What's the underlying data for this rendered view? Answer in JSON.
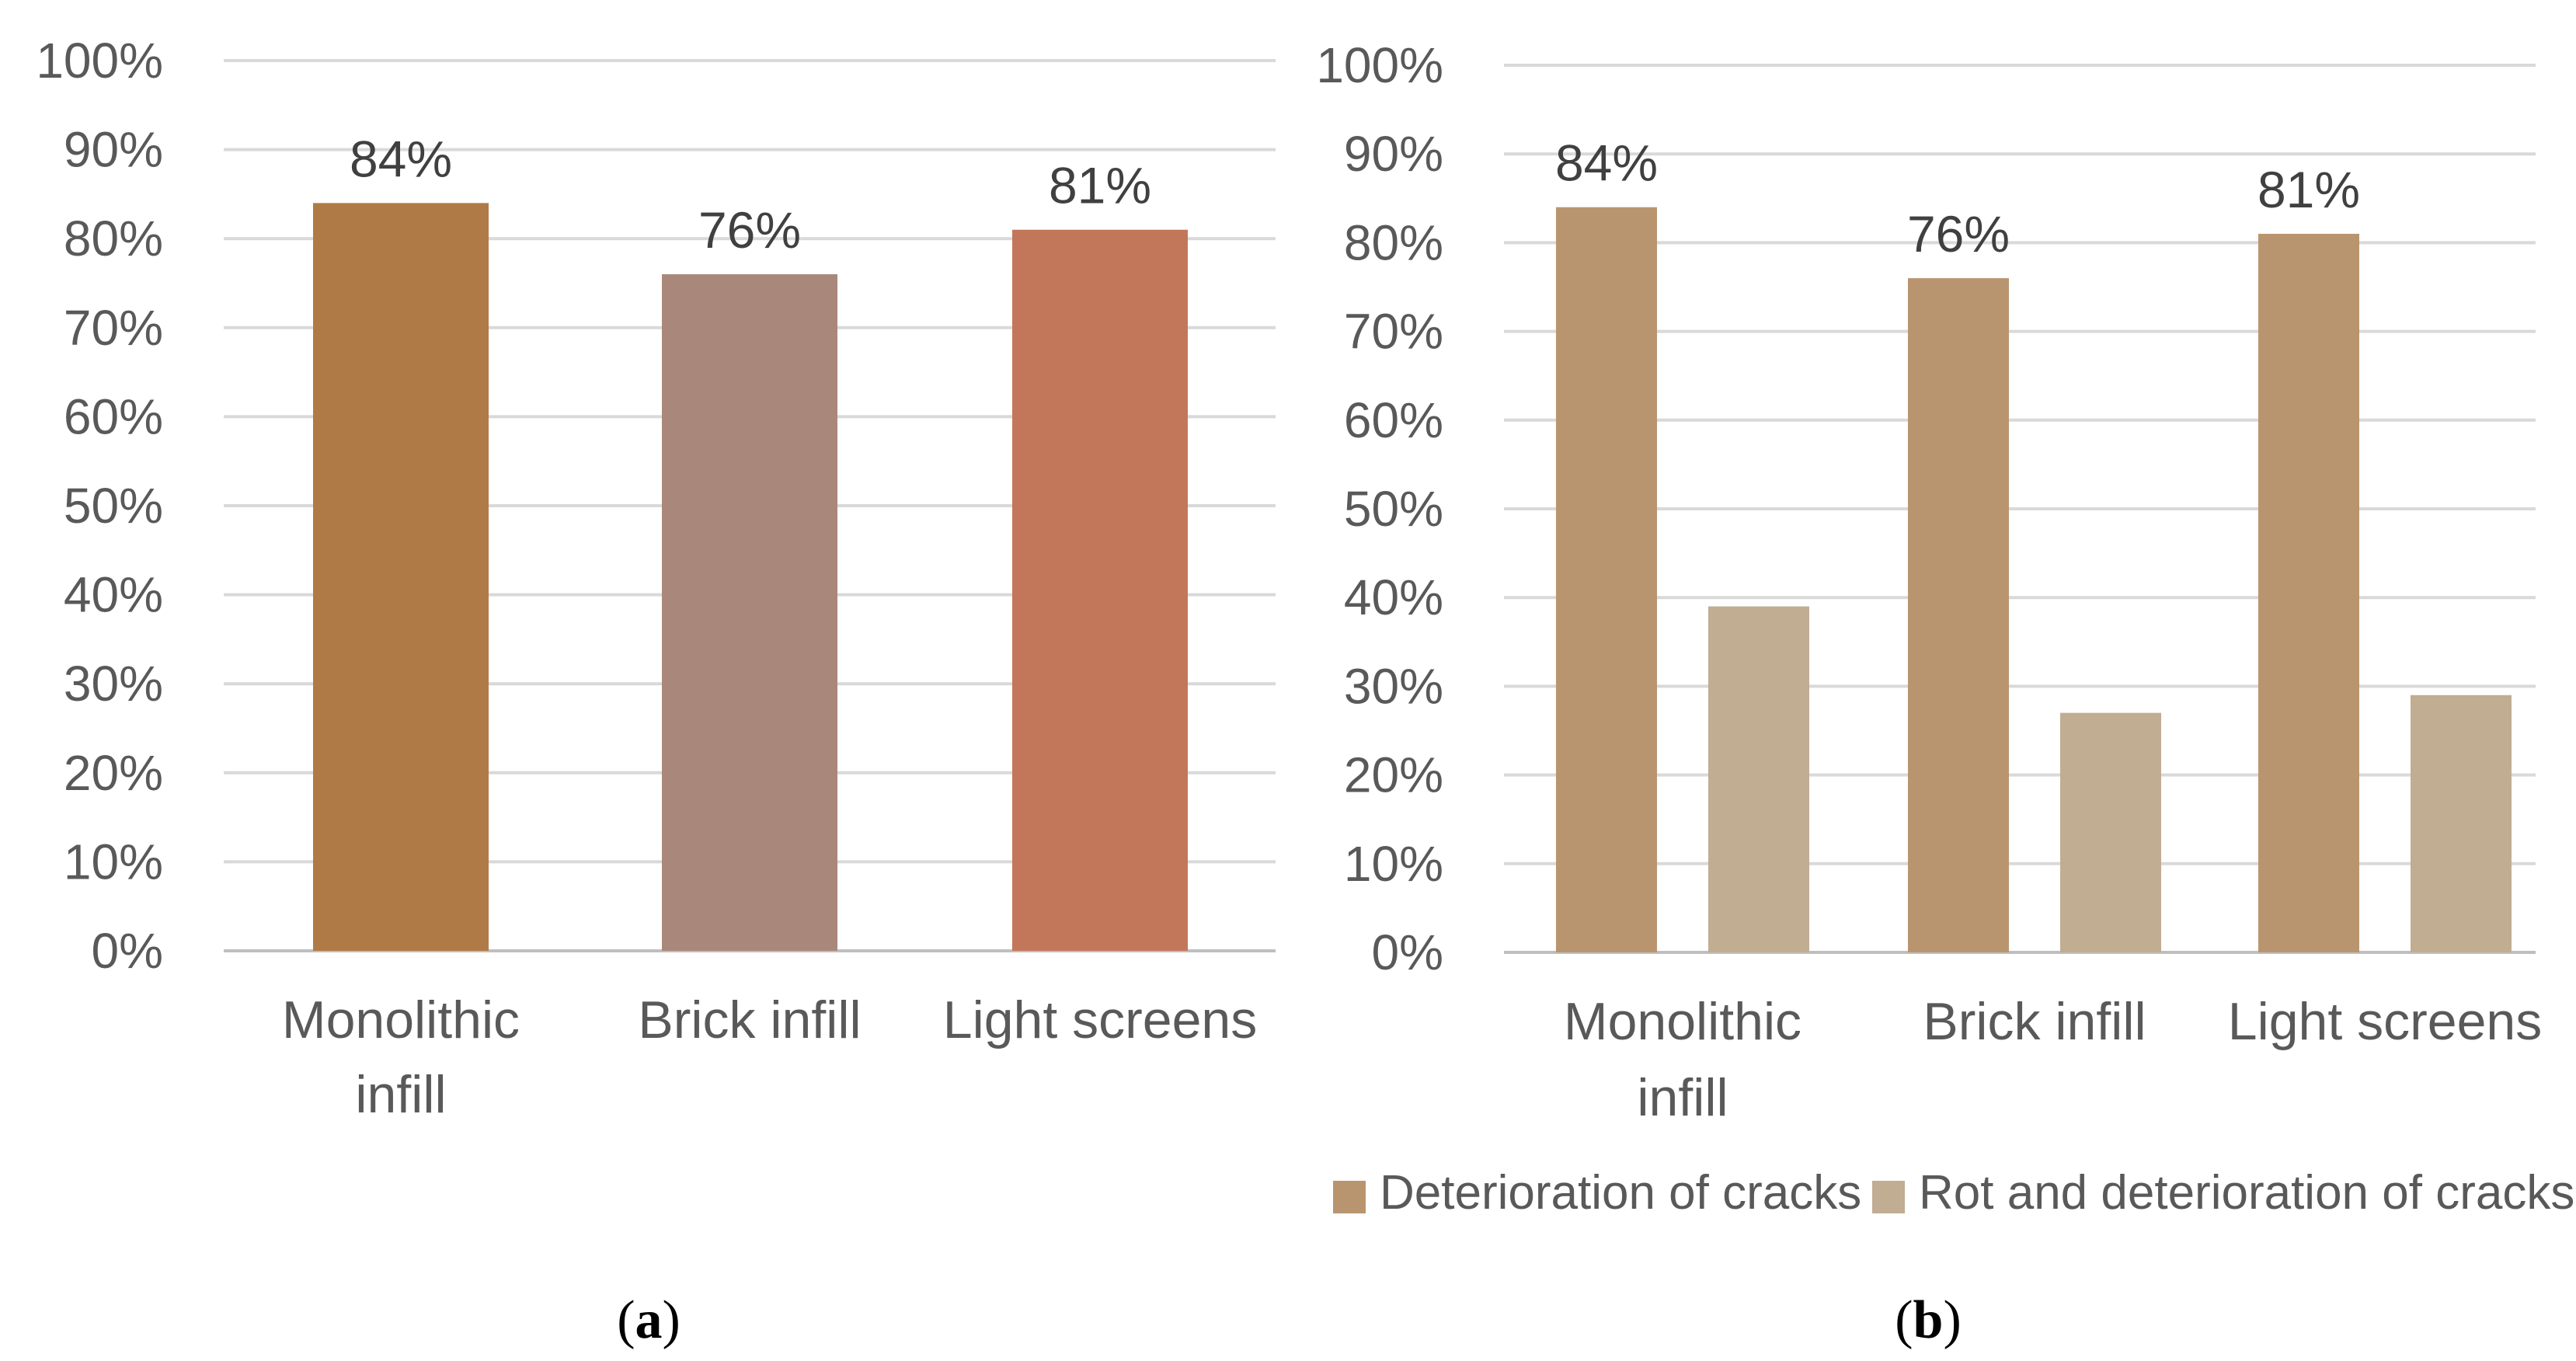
{
  "chart_data": [
    {
      "id": "a",
      "type": "bar",
      "panel_label": {
        "open": "(",
        "letter": "a",
        "close": ")"
      },
      "categories": [
        "Monolithic infill",
        "Brick infill",
        "Light screens"
      ],
      "category_lines": [
        [
          "Monolithic",
          "infill"
        ],
        [
          "Brick infill"
        ],
        [
          "Light screens"
        ]
      ],
      "series": [
        {
          "name": "",
          "values": [
            84,
            76,
            81
          ],
          "colors": [
            "#b07a47",
            "#a9887b",
            "#c3775a"
          ],
          "labels": [
            "84%",
            "76%",
            "81%"
          ]
        }
      ],
      "yticks": [
        "0%",
        "10%",
        "20%",
        "30%",
        "40%",
        "50%",
        "60%",
        "70%",
        "80%",
        "90%",
        "100%"
      ],
      "ylim": [
        0,
        100
      ],
      "grid": true,
      "legend": null
    },
    {
      "id": "b",
      "type": "bar",
      "panel_label": {
        "open": "(",
        "letter": "b",
        "close": ")"
      },
      "categories": [
        "Monolithic infill",
        "Brick infill",
        "Light screens"
      ],
      "category_lines": [
        [
          "Monolithic",
          "infill"
        ],
        [
          "Brick infill"
        ],
        [
          "Light screens"
        ]
      ],
      "series": [
        {
          "name": "Deterioration of cracks",
          "values": [
            84,
            76,
            81
          ],
          "color": "#b9956f",
          "labels": [
            "84%",
            "76%",
            "81%"
          ]
        },
        {
          "name": "Rot and deterioration of cracks",
          "values": [
            39,
            27,
            29
          ],
          "color": "#c0ad92",
          "labels": null
        }
      ],
      "yticks": [
        "0%",
        "10%",
        "20%",
        "30%",
        "40%",
        "50%",
        "60%",
        "70%",
        "80%",
        "90%",
        "100%"
      ],
      "ylim": [
        0,
        100
      ],
      "grid": true,
      "legend": "bottom-right"
    }
  ]
}
